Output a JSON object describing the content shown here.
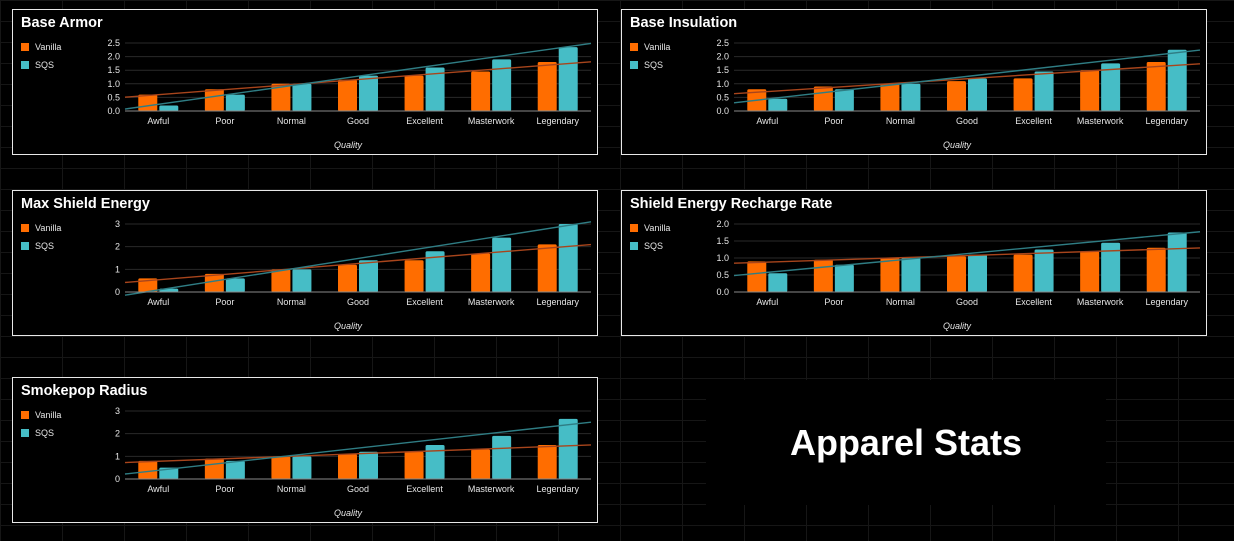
{
  "page_title": "Apparel Stats",
  "colors": {
    "vanilla": "#ff6d00",
    "sqs": "#46bdc6"
  },
  "chart_data": [
    {
      "type": "bar",
      "title": "Base Armor",
      "xlabel": "Quality",
      "categories": [
        "Awful",
        "Poor",
        "Normal",
        "Good",
        "Excellent",
        "Masterwork",
        "Legendary"
      ],
      "yticks": [
        "0.0",
        "0.5",
        "1.0",
        "1.5",
        "2.0",
        "2.5"
      ],
      "ylim": [
        0,
        2.5
      ],
      "series": [
        {
          "name": "Vanilla",
          "values": [
            0.6,
            0.8,
            1.0,
            1.15,
            1.3,
            1.45,
            1.8
          ]
        },
        {
          "name": "SQS",
          "values": [
            0.2,
            0.6,
            1.0,
            1.3,
            1.6,
            1.9,
            2.35
          ]
        }
      ],
      "trendlines": true,
      "legend": "top-left",
      "grid": true
    },
    {
      "type": "bar",
      "title": "Base Insulation",
      "xlabel": "Quality",
      "categories": [
        "Awful",
        "Poor",
        "Normal",
        "Good",
        "Excellent",
        "Masterwork",
        "Legendary"
      ],
      "yticks": [
        "0.0",
        "0.5",
        "1.0",
        "1.5",
        "2.0",
        "2.5"
      ],
      "ylim": [
        0,
        2.5
      ],
      "series": [
        {
          "name": "Vanilla",
          "values": [
            0.8,
            0.9,
            1.0,
            1.1,
            1.2,
            1.5,
            1.8
          ]
        },
        {
          "name": "SQS",
          "values": [
            0.45,
            0.8,
            1.0,
            1.2,
            1.45,
            1.75,
            2.25
          ]
        }
      ],
      "trendlines": true,
      "legend": "top-left",
      "grid": true
    },
    {
      "type": "bar",
      "title": "Max Shield Energy",
      "xlabel": "Quality",
      "categories": [
        "Awful",
        "Poor",
        "Normal",
        "Good",
        "Excellent",
        "Masterwork",
        "Legendary"
      ],
      "yticks": [
        "0",
        "1",
        "2",
        "3"
      ],
      "ylim": [
        0,
        3
      ],
      "series": [
        {
          "name": "Vanilla",
          "values": [
            0.6,
            0.8,
            1.0,
            1.2,
            1.4,
            1.7,
            2.1
          ]
        },
        {
          "name": "SQS",
          "values": [
            0.15,
            0.6,
            1.0,
            1.4,
            1.8,
            2.4,
            3.0
          ]
        }
      ],
      "trendlines": true,
      "legend": "top-left",
      "grid": true
    },
    {
      "type": "bar",
      "title": "Shield Energy Recharge Rate",
      "xlabel": "Quality",
      "categories": [
        "Awful",
        "Poor",
        "Normal",
        "Good",
        "Excellent",
        "Masterwork",
        "Legendary"
      ],
      "yticks": [
        "0.0",
        "0.5",
        "1.0",
        "1.5",
        "2.0"
      ],
      "ylim": [
        0,
        2.0
      ],
      "series": [
        {
          "name": "Vanilla",
          "values": [
            0.9,
            0.95,
            1.0,
            1.05,
            1.1,
            1.2,
            1.3
          ]
        },
        {
          "name": "SQS",
          "values": [
            0.55,
            0.8,
            1.0,
            1.1,
            1.25,
            1.45,
            1.75
          ]
        }
      ],
      "trendlines": true,
      "legend": "top-left",
      "grid": true
    },
    {
      "type": "bar",
      "title": "Smokepop Radius",
      "xlabel": "Quality",
      "categories": [
        "Awful",
        "Poor",
        "Normal",
        "Good",
        "Excellent",
        "Masterwork",
        "Legendary"
      ],
      "yticks": [
        "0",
        "1",
        "2",
        "3"
      ],
      "ylim": [
        0,
        3
      ],
      "series": [
        {
          "name": "Vanilla",
          "values": [
            0.8,
            0.9,
            1.0,
            1.1,
            1.2,
            1.3,
            1.5
          ]
        },
        {
          "name": "SQS",
          "values": [
            0.5,
            0.8,
            1.0,
            1.2,
            1.5,
            1.9,
            2.65
          ]
        }
      ],
      "trendlines": true,
      "legend": "top-left",
      "grid": true
    }
  ]
}
